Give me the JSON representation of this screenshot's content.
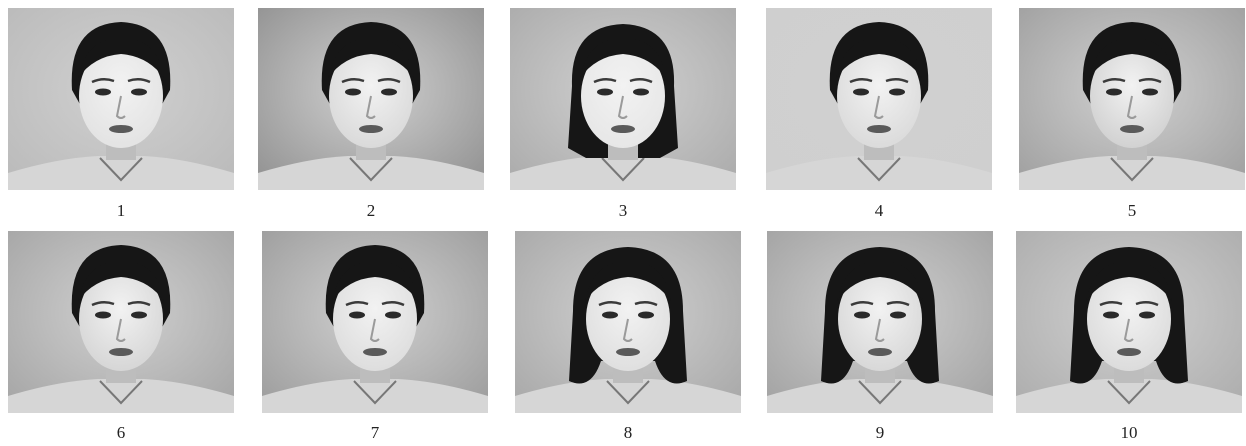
{
  "figure": {
    "faces": [
      {
        "label": "1",
        "hair": "tied",
        "bg": "#b9b9b9",
        "skin": "#e2e2e2"
      },
      {
        "label": "2",
        "hair": "tied",
        "bg": "#8e8e8e",
        "skin": "#d8d8d8"
      },
      {
        "label": "3",
        "hair": "medium",
        "bg": "#a9a9a9",
        "skin": "#e6e6e6"
      },
      {
        "label": "4",
        "hair": "tied",
        "bg": "#cfcfcf",
        "skin": "#d9d9d9"
      },
      {
        "label": "5",
        "hair": "tied",
        "bg": "#9d9d9d",
        "skin": "#cfcfcf"
      },
      {
        "label": "6",
        "hair": "tied",
        "bg": "#a3a3a3",
        "skin": "#d4d4d4"
      },
      {
        "label": "7",
        "hair": "tied",
        "bg": "#9a9a9a",
        "skin": "#dcdcdc"
      },
      {
        "label": "8",
        "hair": "bob",
        "bg": "#a6a6a6",
        "skin": "#dedede"
      },
      {
        "label": "9",
        "hair": "bob",
        "bg": "#a0a0a0",
        "skin": "#d6d6d6"
      },
      {
        "label": "10",
        "hair": "bob",
        "bg": "#ababab",
        "skin": "#dadada"
      }
    ]
  }
}
